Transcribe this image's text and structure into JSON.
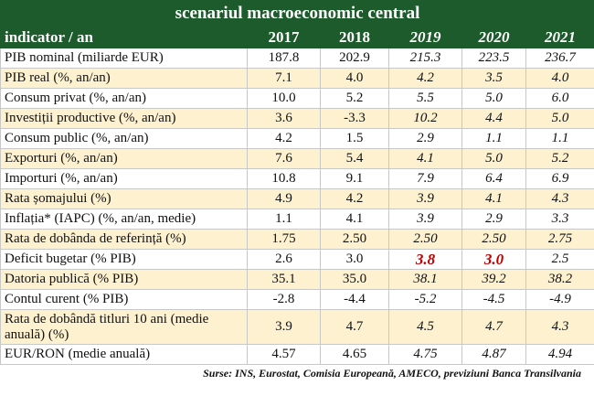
{
  "header": {
    "title": "scenariul macroeconomic central"
  },
  "table": {
    "columns": [
      "indicator / an",
      "2017",
      "2018",
      "2019",
      "2020",
      "2021"
    ],
    "rows": [
      [
        "PIB nominal (miliarde EUR)",
        "187.8",
        "202.9",
        "215.3",
        "223.5",
        "236.7"
      ],
      [
        "PIB real (%, an/an)",
        "7.1",
        "4.0",
        "4.2",
        "3.5",
        "4.0"
      ],
      [
        "Consum privat (%, an/an)",
        "10.0",
        "5.2",
        "5.5",
        "5.0",
        "6.0"
      ],
      [
        "Investiții productive (%, an/an)",
        "3.6",
        "-3.3",
        "10.2",
        "4.4",
        "5.0"
      ],
      [
        "Consum public (%, an/an)",
        "4.2",
        "1.5",
        "2.9",
        "1.1",
        "1.1"
      ],
      [
        "Exporturi (%, an/an)",
        "7.6",
        "5.4",
        "4.1",
        "5.0",
        "5.2"
      ],
      [
        "Importuri (%, an/an)",
        "10.8",
        "9.1",
        "7.9",
        "6.4",
        "6.9"
      ],
      [
        "Rata șomajului (%)",
        "4.9",
        "4.2",
        "3.9",
        "4.1",
        "4.3"
      ],
      [
        "Inflația* (IAPC) (%, an/an, medie)",
        "1.1",
        "4.1",
        "3.9",
        "2.9",
        "3.3"
      ],
      [
        "Rata de dobânda de referință (%)",
        "1.75",
        "2.50",
        "2.50",
        "2.50",
        "2.75"
      ],
      [
        "Deficit bugetar (% PIB)",
        "2.6",
        "3.0",
        "3.8",
        "3.0",
        "2.5"
      ],
      [
        "Datoria publică (% PIB)",
        "35.1",
        "35.0",
        "38.1",
        "39.2",
        "38.2"
      ],
      [
        "Contul curent (% PIB)",
        "-2.8",
        "-4.4",
        "-5.2",
        "-4.5",
        "-4.9"
      ],
      [
        "Rata de dobândă titluri 10 ani (medie anuală) (%)",
        "3.9",
        "4.7",
        "4.5",
        "4.7",
        "4.3"
      ],
      [
        "EUR/RON (medie anuală)",
        "4.57",
        "4.65",
        "4.75",
        "4.87",
        "4.94"
      ]
    ]
  },
  "source": "Surse: INS, Eurostat, Comisia Europeană, AMECO, previziuni Banca Transilvania"
}
